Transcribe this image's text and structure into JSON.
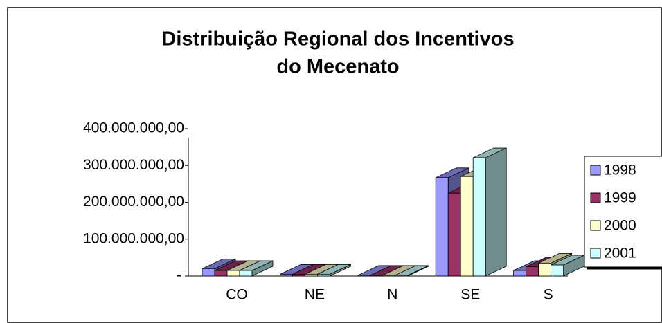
{
  "chart_data": {
    "type": "bar3d",
    "title": "Distribuição Regional dos Incentivos do Mecenato",
    "categories": [
      "CO",
      "NE",
      "N",
      "SE",
      "S"
    ],
    "series": [
      {
        "name": "1998",
        "color": "#9999ff",
        "values": [
          20000000,
          5000000,
          2000000,
          267000000,
          15000000
        ]
      },
      {
        "name": "1999",
        "color": "#993366",
        "values": [
          15000000,
          5000000,
          2000000,
          225000000,
          25000000
        ]
      },
      {
        "name": "2000",
        "color": "#ffffcc",
        "values": [
          15000000,
          5000000,
          2000000,
          270000000,
          35000000
        ]
      },
      {
        "name": "2001",
        "color": "#ccffff",
        "values": [
          15000000,
          5000000,
          2000000,
          321000000,
          30000000
        ]
      }
    ],
    "ylim": [
      0,
      400000000
    ],
    "yticks": [
      {
        "value": 0,
        "label": "-"
      },
      {
        "value": 100000000,
        "label": "100.000.000,00"
      },
      {
        "value": 200000000,
        "label": "200.000.000,00"
      },
      {
        "value": 300000000,
        "label": "300.000.000,00"
      },
      {
        "value": 400000000,
        "label": "400.000.000,00"
      }
    ]
  }
}
